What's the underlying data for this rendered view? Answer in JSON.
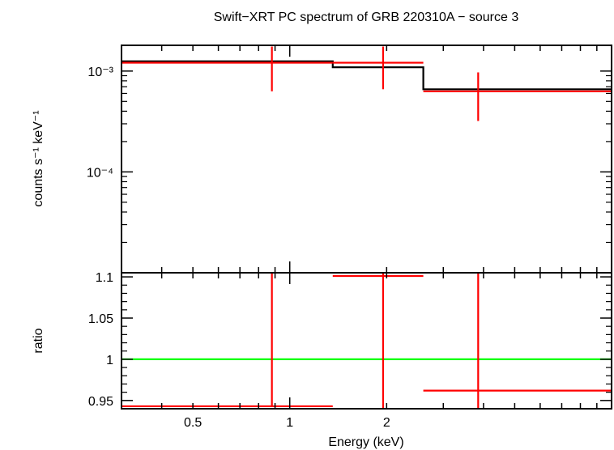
{
  "chart_data": {
    "type": "scatter",
    "title": "Swift−XRT PC spectrum of GRB 220310A − source 3",
    "xlabel": "Energy (keV)",
    "x_scale": "log",
    "xlim": [
      0.3,
      10
    ],
    "x_ticks": [
      "0.5",
      "1",
      "2"
    ],
    "panels": [
      {
        "id": "spectrum",
        "ylabel": "counts s⁻¹ keV⁻¹",
        "y_scale": "log",
        "ylim": [
          1e-05,
          0.0018
        ],
        "y_ticks": [
          {
            "value": 0.001,
            "label": "10⁻³"
          },
          {
            "value": 0.0001,
            "label": "10⁻⁴"
          }
        ],
        "series": [
          {
            "kind": "model-step",
            "color": "#000000",
            "x_edges": [
              0.3,
              1.36,
              2.6,
              10
            ],
            "values": [
              0.00125,
              0.00109,
              0.00066
            ]
          },
          {
            "kind": "data",
            "color": "#ff0000",
            "points": [
              {
                "x": 0.88,
                "x_lo": 0.3,
                "x_hi": 1.36,
                "y": 0.00121,
                "y_lo": 0.00063,
                "y_hi": 0.00175
              },
              {
                "x": 1.95,
                "x_lo": 1.36,
                "x_hi": 2.6,
                "y": 0.00121,
                "y_lo": 0.00066,
                "y_hi": 0.00175
              },
              {
                "x": 3.85,
                "x_lo": 2.6,
                "x_hi": 10,
                "y": 0.00063,
                "y_lo": 0.00032,
                "y_hi": 0.00097
              }
            ]
          }
        ]
      },
      {
        "id": "ratio",
        "ylabel": "ratio",
        "y_scale": "linear",
        "ylim": [
          0.94,
          1.105
        ],
        "y_ticks": [
          {
            "value": 1.1,
            "label": "1.1"
          },
          {
            "value": 1.05,
            "label": "1.05"
          },
          {
            "value": 1,
            "label": "1"
          },
          {
            "value": 0.95,
            "label": "0.95"
          }
        ],
        "reference_line": {
          "y": 1,
          "color": "#00ff00"
        },
        "series": [
          {
            "kind": "data",
            "color": "#ff0000",
            "points": [
              {
                "x": 0.88,
                "x_lo": 0.3,
                "x_hi": 1.36,
                "y": 0.943,
                "y_lo": 0.943,
                "y_hi": 1.105
              },
              {
                "x": 1.95,
                "x_lo": 1.36,
                "x_hi": 2.6,
                "y": 1.101,
                "y_lo": 0.94,
                "y_hi": 1.105
              },
              {
                "x": 3.85,
                "x_lo": 2.6,
                "x_hi": 10,
                "y": 0.962,
                "y_lo": 0.94,
                "y_hi": 1.105
              }
            ]
          }
        ]
      }
    ]
  }
}
